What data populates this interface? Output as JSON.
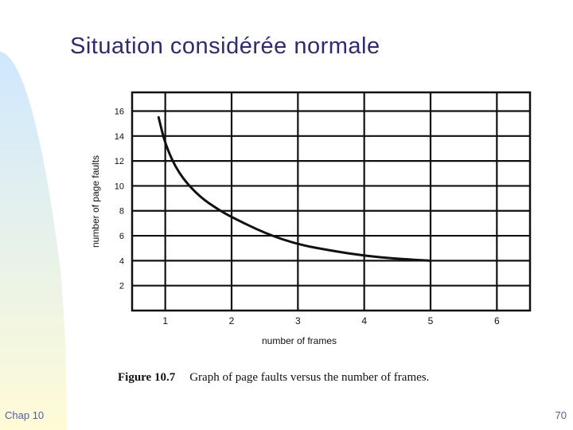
{
  "slide": {
    "title": "Situation considérée normale",
    "footer_left": "Chap 10",
    "footer_right": "70"
  },
  "theme": {
    "title_color": "#2b2b7a",
    "footer_color": "#4a5fa8",
    "sidebar_top": "#cfe8ff",
    "sidebar_bottom": "#fffbd6",
    "grid_color": "#111111"
  },
  "chart_data": {
    "type": "line",
    "title": "",
    "caption_label": "Figure 10.7",
    "caption_text": "Graph of page faults versus the number of frames.",
    "xlabel": "number of frames",
    "ylabel": "number of page faults",
    "xlim": [
      0.5,
      6.5
    ],
    "ylim": [
      0,
      17.5
    ],
    "x_ticks": [
      1,
      2,
      3,
      4,
      5,
      6
    ],
    "y_ticks": [
      2,
      4,
      6,
      8,
      10,
      12,
      14,
      16
    ],
    "grid": true,
    "series": [
      {
        "x": [
          0.9,
          1.0,
          1.2,
          1.5,
          1.8,
          2.0,
          2.5,
          3.0,
          3.5,
          4.0,
          4.5,
          5.0
        ],
        "y": [
          15.5,
          13.3,
          11.0,
          9.2,
          8.1,
          7.5,
          6.2,
          5.3,
          4.8,
          4.4,
          4.15,
          4.0
        ]
      }
    ]
  }
}
